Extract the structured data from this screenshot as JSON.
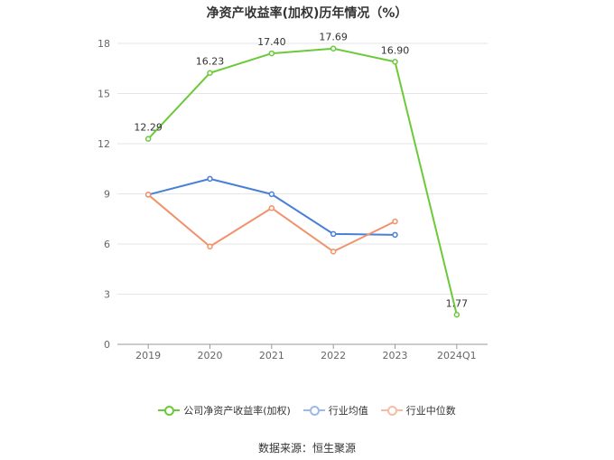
{
  "title": "净资产收益率(加权)历年情况（%）",
  "source": "数据来源：恒生聚源",
  "chart_data": {
    "type": "line",
    "categories": [
      "2019",
      "2020",
      "2021",
      "2022",
      "2023",
      "2024Q1"
    ],
    "ylim": [
      0,
      18
    ],
    "yticks": [
      0,
      3,
      6,
      9,
      12,
      15,
      18
    ],
    "grid": true,
    "legend_position": "bottom",
    "series": [
      {
        "name": "公司净资产收益率(加权)",
        "color": "#6cc93a",
        "values": [
          12.29,
          16.23,
          17.4,
          17.69,
          16.9,
          1.77
        ],
        "labels": [
          "12.29",
          "16.23",
          "17.40",
          "17.69",
          "16.90",
          "1.77"
        ]
      },
      {
        "name": "行业均值",
        "color": "#4a7fd8",
        "values": [
          8.95,
          9.9,
          8.98,
          6.6,
          6.55,
          null
        ]
      },
      {
        "name": "行业中位数",
        "color": "#f2926c",
        "values": [
          8.95,
          5.85,
          8.15,
          5.55,
          7.35,
          null
        ]
      }
    ]
  }
}
